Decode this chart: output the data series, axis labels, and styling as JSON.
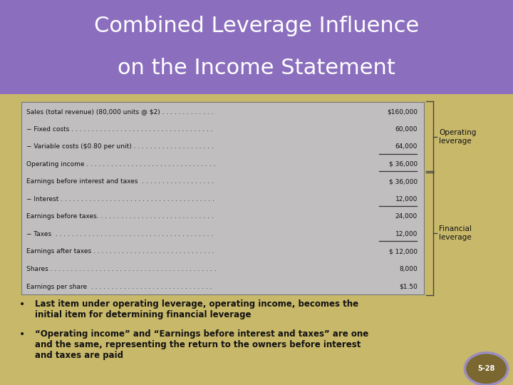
{
  "title_line1": "Combined Leverage Influence",
  "title_line2": "on the Income Statement",
  "title_bg": "#8B6FBE",
  "title_text_color": "#FFFFFF",
  "slide_bg": "#C8B86A",
  "table_bg": "#C0BEBE",
  "table_border": "#888888",
  "rows": [
    {
      "label": "Sales (total revenue) (80,000 units @ $2) . . . . . . . . . . . . .",
      "value": "$160,000",
      "underline": false
    },
    {
      "label": "− Fixed costs . . . . . . . . . . . . . . . . . . . . . . . . . . . . . . . . . . .",
      "value": "60,000",
      "underline": false
    },
    {
      "label": "− Variable costs ($0.80 per unit) . . . . . . . . . . . . . . . . . . . .",
      "value": "64,000",
      "underline": true
    },
    {
      "label": "Operating income . . . . . . . . . . . . . . . . . . . . . . . . . . . . . . . .",
      "value": "$ 36,000",
      "underline": true
    },
    {
      "label": "Earnings before interest and taxes  . . . . . . . . . . . . . . . . . .",
      "value": "$ 36,000",
      "underline": false
    },
    {
      "label": "− Interest . . . . . . . . . . . . . . . . . . . . . . . . . . . . . . . . . . . . . .",
      "value": "12,000",
      "underline": true
    },
    {
      "label": "Earnings before taxes. . . . . . . . . . . . . . . . . . . . . . . . . . . . .",
      "value": "24,000",
      "underline": false
    },
    {
      "label": "− Taxes  . . . . . . . . . . . . . . . . . . . . . . . . . . . . . . . . . . . . . . .",
      "value": "12,000",
      "underline": true
    },
    {
      "label": "Earnings after taxes . . . . . . . . . . . . . . . . . . . . . . . . . . . . . .",
      "value": "$ 12,000",
      "underline": false
    },
    {
      "label": "Shares . . . . . . . . . . . . . . . . . . . . . . . . . . . . . . . . . . . . . . . . .",
      "value": "8,000",
      "underline": false
    },
    {
      "label": "Earnings per share  . . . . . . . . . . . . . . . . . . . . . . . . . . . . . .",
      "value": "$1.50",
      "underline": false
    }
  ],
  "bullet1": "Last item under operating leverage, operating income, becomes the\ninitial item for determining financial leverage",
  "bullet2": "“Operating income” and “Earnings before interest and taxes” are one\nand the same, representing the return to the owners before interest\nand taxes are paid",
  "page_num": "5-28",
  "bracket_color": "#444444",
  "op_lev_label": "Operating\nleverage",
  "fin_lev_label": "Financial\nleverage"
}
